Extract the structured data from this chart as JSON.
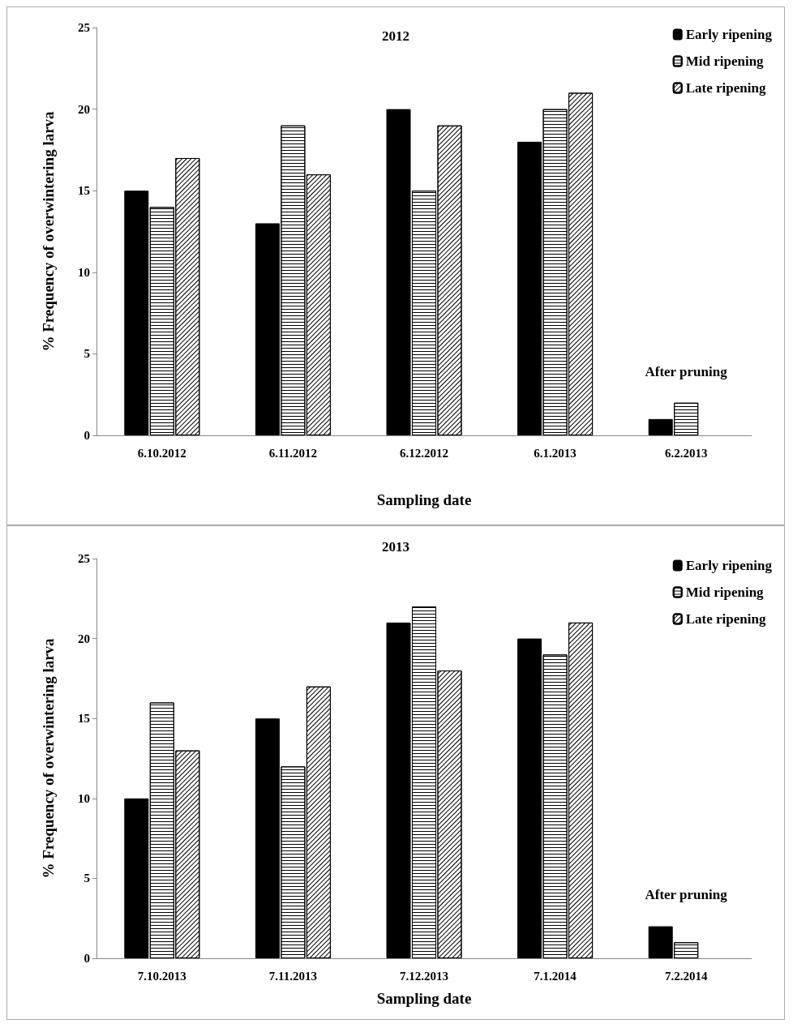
{
  "chart_data": [
    {
      "type": "bar",
      "title": "2012",
      "xlabel": "Sampling date",
      "ylabel": "% Frequency of overwintering larva",
      "categories": [
        "6.10.2012",
        "6.11.2012",
        "6.12.2012",
        "6.1.2013",
        "6.2.2013"
      ],
      "series": [
        {
          "name": "Early ripening",
          "color": "#000000",
          "values": [
            15,
            13,
            20,
            18,
            1
          ]
        },
        {
          "name": "Mid ripening",
          "color": "#ffffff",
          "values": [
            14,
            19,
            15,
            20,
            2
          ]
        },
        {
          "name": "Late ripening",
          "color": "#ffffff",
          "values": [
            17,
            16,
            19,
            21,
            null
          ]
        }
      ],
      "ylim": [
        0,
        25
      ],
      "yticks": [
        0,
        5,
        10,
        15,
        20,
        25
      ],
      "grid": false,
      "legend": "top right",
      "annotations": [
        "After pruning"
      ]
    },
    {
      "type": "bar",
      "title": "2013",
      "xlabel": "Sampling date",
      "ylabel": "% Frequency of overwintering larva",
      "categories": [
        "7.10.2013",
        "7.11.2013",
        "7.12.2013",
        "7.1.2014",
        "7.2.2014"
      ],
      "series": [
        {
          "name": "Early ripening",
          "color": "#000000",
          "values": [
            10,
            15,
            21,
            20,
            2
          ]
        },
        {
          "name": "Mid ripening",
          "color": "#ffffff",
          "values": [
            16,
            12,
            22,
            19,
            1
          ]
        },
        {
          "name": "Late ripening",
          "color": "#ffffff",
          "values": [
            13,
            17,
            18,
            21,
            null
          ]
        }
      ],
      "ylim": [
        0,
        25
      ],
      "yticks": [
        0,
        5,
        10,
        15,
        20,
        25
      ],
      "grid": false,
      "legend": "top right",
      "annotations": [
        "After pruning"
      ]
    }
  ]
}
